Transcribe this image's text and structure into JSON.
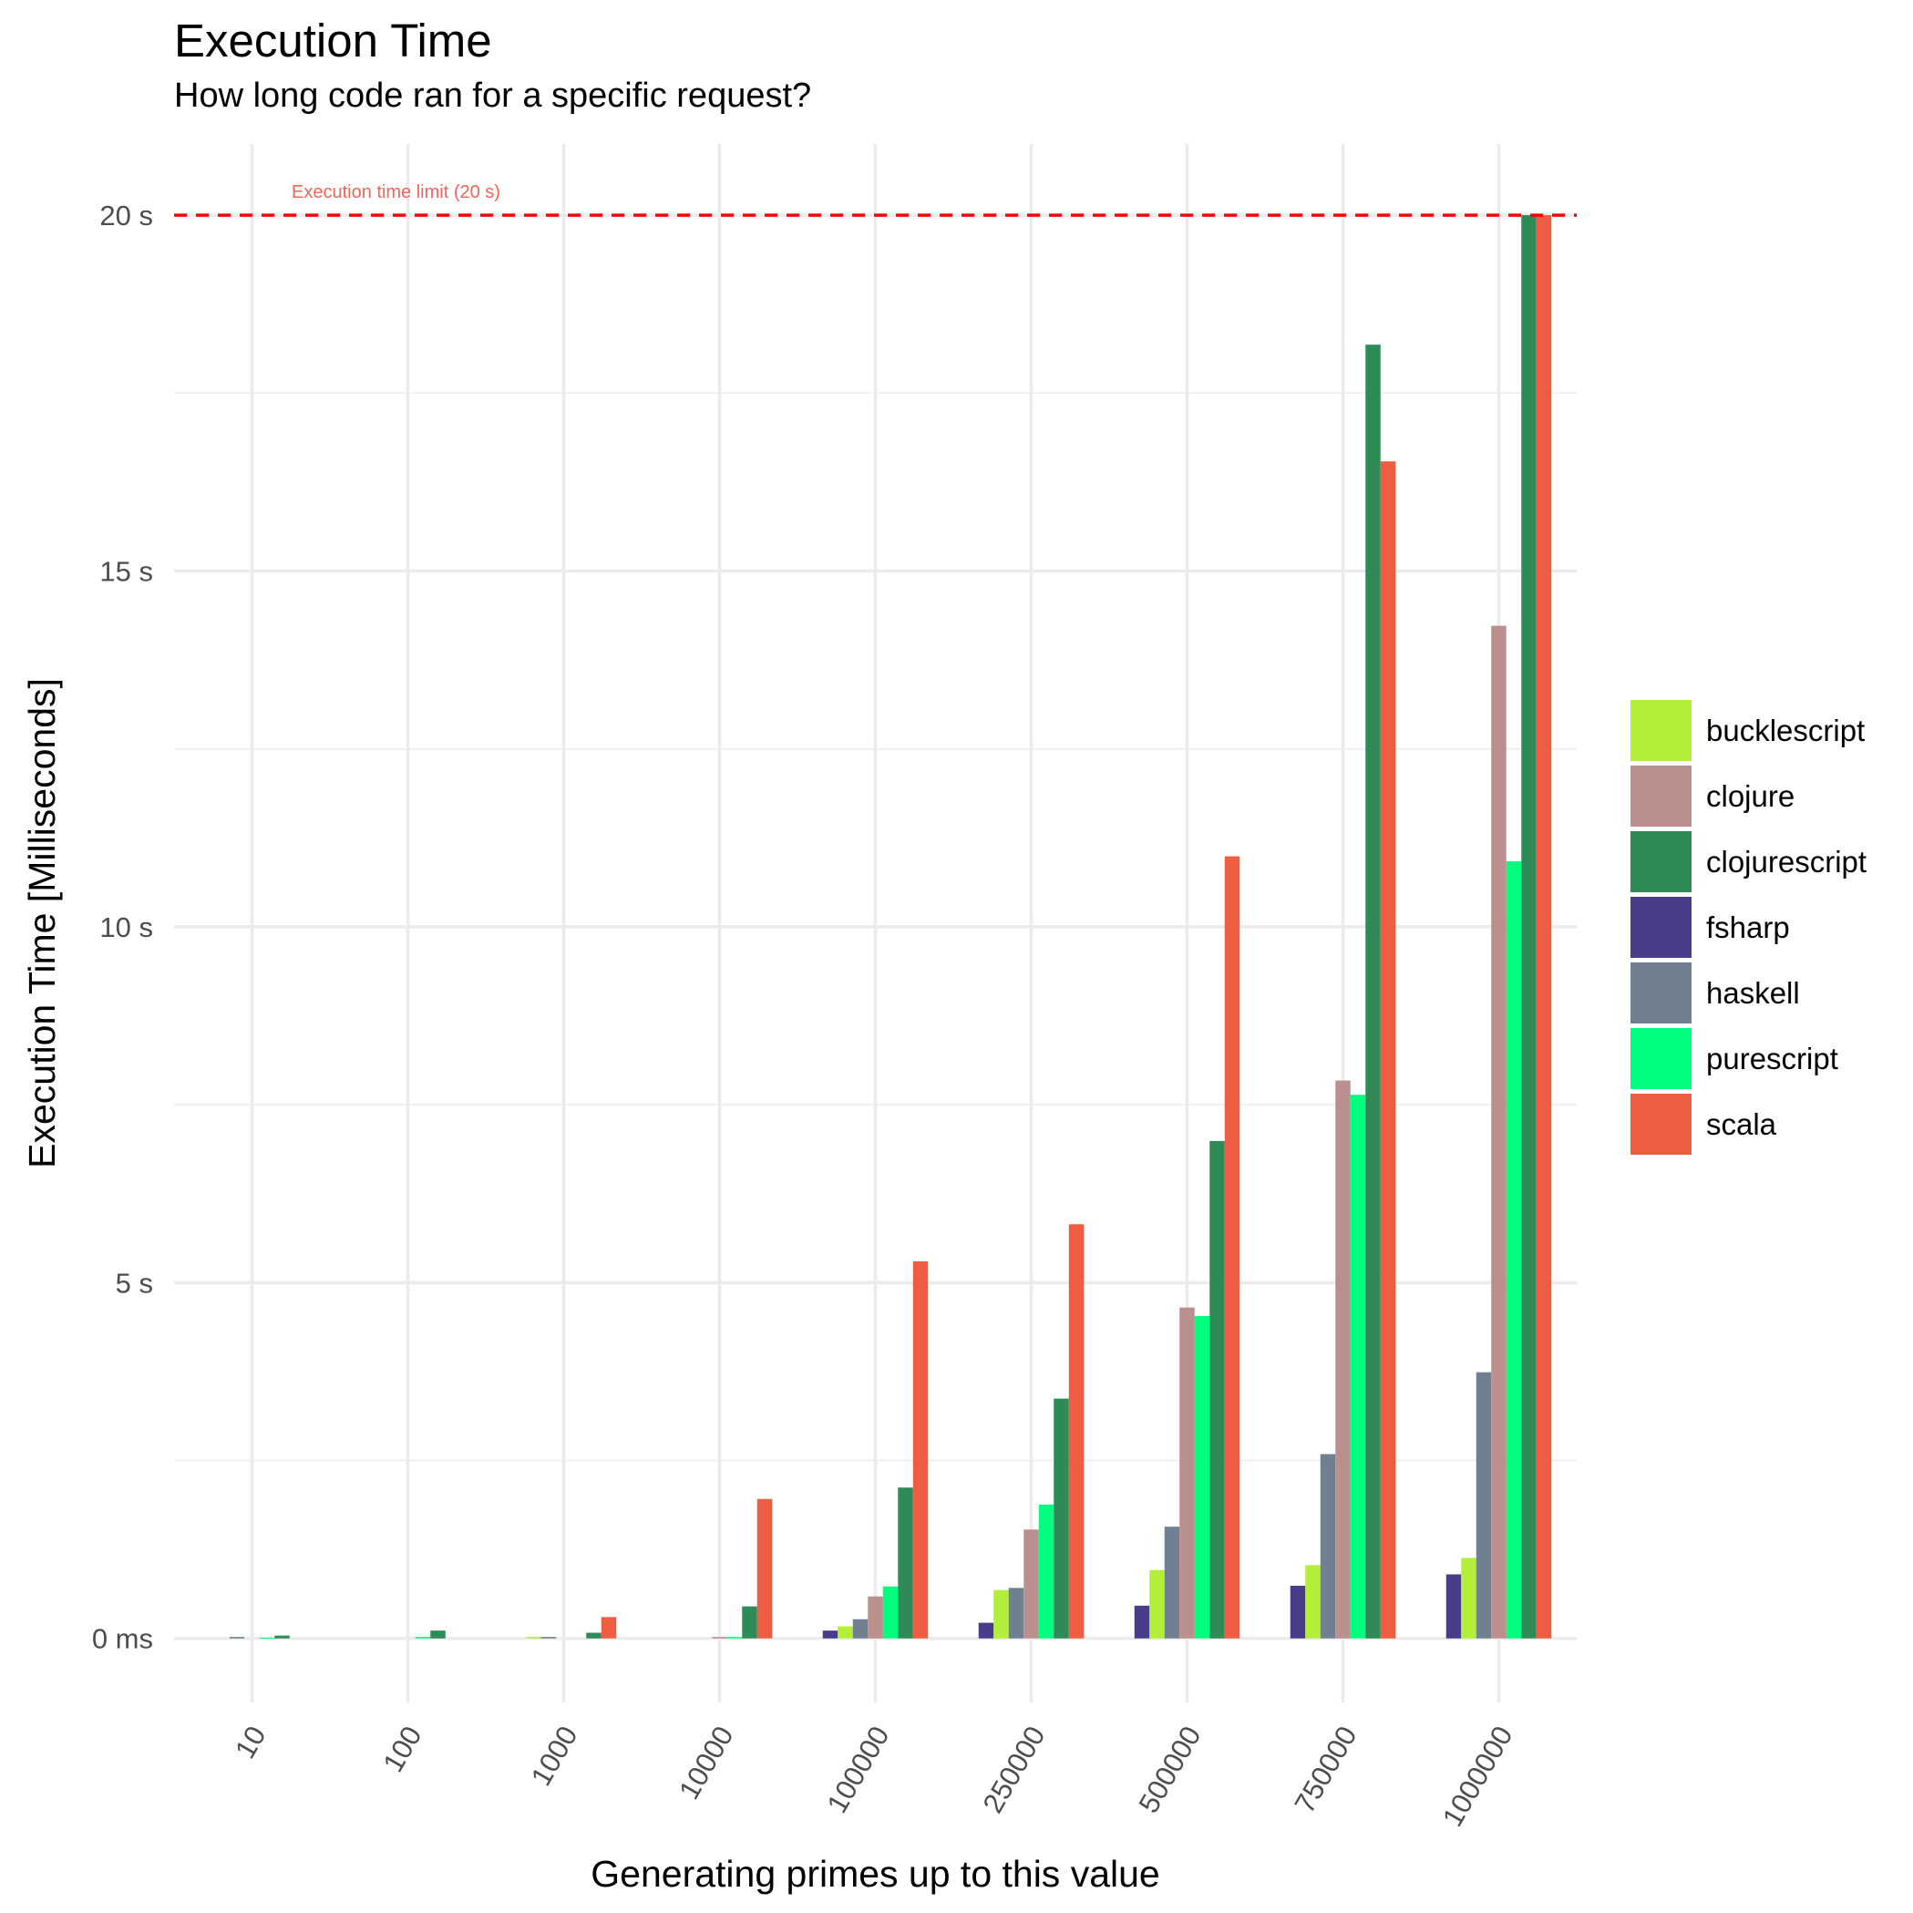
{
  "title": "Execution Time",
  "subtitle": "How long code ran for a specific request?",
  "chart_data": {
    "type": "bar",
    "title": "Execution Time",
    "subtitle": "How long code ran for a specific request?",
    "xlabel": "Generating primes up to this value",
    "ylabel": "Execution Time [Milliseconds]",
    "categories": [
      "10",
      "100",
      "1000",
      "10000",
      "100000",
      "250000",
      "500000",
      "750000",
      "1000000"
    ],
    "y_ticks": [
      {
        "value": 0,
        "label": "0 ms"
      },
      {
        "value": 5000,
        "label": "5 s"
      },
      {
        "value": 10000,
        "label": "10 s"
      },
      {
        "value": 15000,
        "label": "15 s"
      },
      {
        "value": 20000,
        "label": "20 s"
      }
    ],
    "ylim": [
      -900,
      21000
    ],
    "grid": true,
    "legend_position": "right",
    "reference_line": {
      "value": 20000,
      "label": "Execution time limit (20 s)",
      "color": "#ff0000",
      "label_color": "#f0645a",
      "style": "dashed"
    },
    "series": [
      {
        "name": "fsharp",
        "color": "#483d8b",
        "values": [
          0,
          0,
          0,
          0,
          110,
          220,
          460,
          740,
          900
        ]
      },
      {
        "name": "bucklescript",
        "color": "#b3ee3a",
        "values": [
          0,
          0,
          20,
          0,
          170,
          680,
          960,
          1030,
          1130
        ]
      },
      {
        "name": "haskell",
        "color": "#708090",
        "values": [
          20,
          0,
          20,
          0,
          270,
          710,
          1570,
          2590,
          3740
        ]
      },
      {
        "name": "clojure",
        "color": "#bc8f8f",
        "values": [
          0,
          0,
          0,
          20,
          590,
          1530,
          4650,
          7840,
          14230
        ]
      },
      {
        "name": "purescript",
        "color": "#00ff7f",
        "values": [
          10,
          20,
          0,
          20,
          730,
          1880,
          4530,
          7640,
          10920
        ]
      },
      {
        "name": "clojurescript",
        "color": "#2e8b57",
        "values": [
          40,
          110,
          80,
          450,
          2120,
          3370,
          6990,
          18180,
          20000
        ]
      },
      {
        "name": "scala",
        "color": "#ee5c42",
        "values": [
          0,
          0,
          300,
          1960,
          5300,
          5820,
          10990,
          16540,
          20000
        ]
      }
    ],
    "legend_order": [
      "bucklescript",
      "clojure",
      "clojurescript",
      "fsharp",
      "haskell",
      "purescript",
      "scala"
    ]
  }
}
